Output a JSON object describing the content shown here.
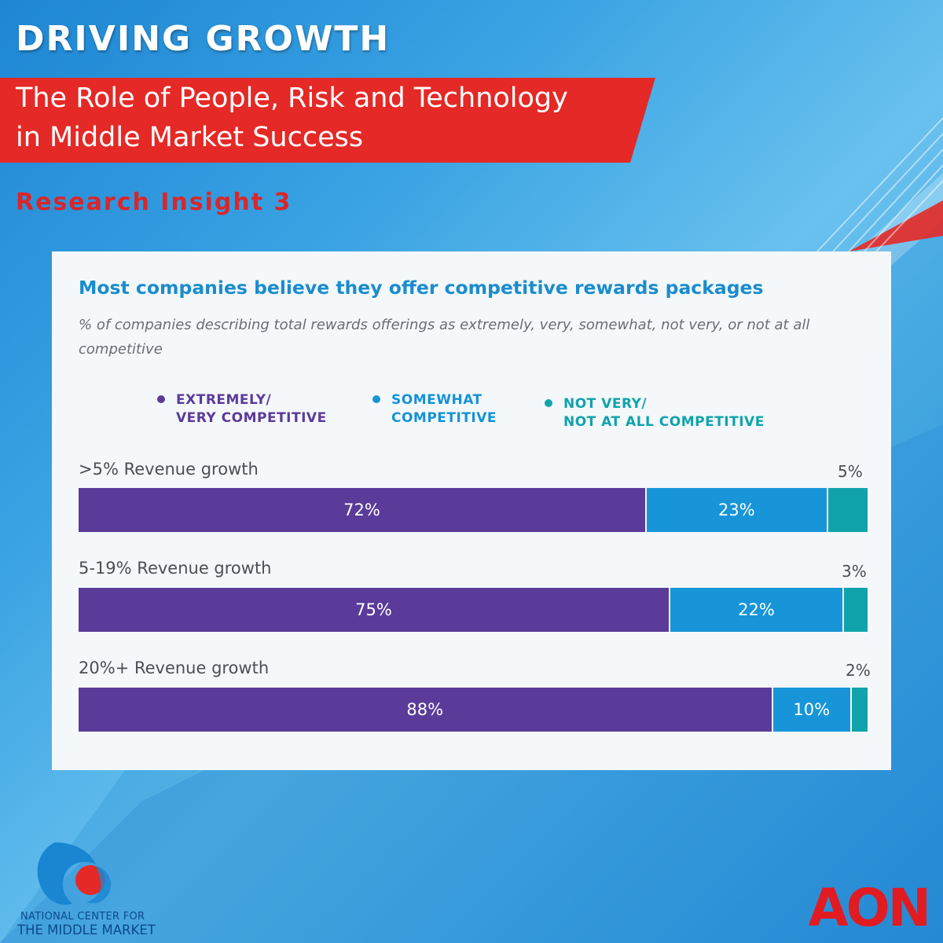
{
  "header": {
    "headline": "DRIVING GROWTH",
    "banner_line1": "The Role of People, Risk and Technology",
    "banner_line2": "in Middle Market Success",
    "insight": "Research Insight 3"
  },
  "colors": {
    "extremely": "#5a3b9a",
    "somewhat": "#1795d8",
    "not_very": "#11a3ab",
    "banner_red": "#e42926",
    "title_blue": "#1a8ccd"
  },
  "chart_data": {
    "type": "bar",
    "orientation": "horizontal",
    "stacked": true,
    "title": "Most companies believe they offer competitive rewards packages",
    "subtitle": "% of companies describing total rewards offerings as extremely, very, somewhat, not very, or not at all competitive",
    "legend": [
      {
        "label": "EXTREMELY/\nVERY COMPETITIVE"
      },
      {
        "label": "SOMEWHAT\nCOMPETITIVE"
      },
      {
        "label": "NOT VERY/\nNOT AT ALL COMPETITIVE"
      }
    ],
    "categories": [
      ">5% Revenue growth",
      "5-19% Revenue growth",
      "20%+ Revenue growth"
    ],
    "series": [
      {
        "name": "EXTREMELY/VERY COMPETITIVE",
        "values": [
          72,
          75,
          88
        ],
        "labels": [
          "72%",
          "75%",
          "88%"
        ]
      },
      {
        "name": "SOMEWHAT COMPETITIVE",
        "values": [
          23,
          22,
          10
        ],
        "labels": [
          "23%",
          "22%",
          "10%"
        ]
      },
      {
        "name": "NOT VERY/NOT AT ALL COMPETITIVE",
        "values": [
          5,
          3,
          2
        ],
        "labels": [
          "5%",
          "3%",
          "2%"
        ]
      }
    ],
    "xlim": [
      0,
      100
    ],
    "legend_position": "top"
  },
  "footer": {
    "ncmm_line1": "NATIONAL CENTER FOR",
    "ncmm_line2": "THE MIDDLE MARKET",
    "aon_logo_text": "AON"
  }
}
